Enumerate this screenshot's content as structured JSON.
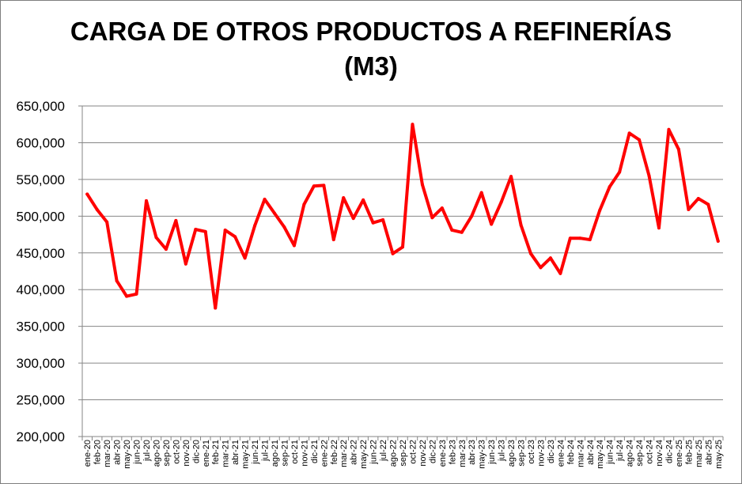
{
  "chart_data": {
    "type": "line",
    "title": "CARGA DE OTROS PRODUCTOS A REFINERÍAS",
    "subtitle": "(M3)",
    "xlabel": "",
    "ylabel": "",
    "ylim": [
      200000,
      650000
    ],
    "yticks": [
      "200,000",
      "250,000",
      "300,000",
      "350,000",
      "400,000",
      "450,000",
      "500,000",
      "550,000",
      "600,000",
      "650,000"
    ],
    "ytick_values": [
      200000,
      250000,
      300000,
      350000,
      400000,
      450000,
      500000,
      550000,
      600000,
      650000
    ],
    "grid": true,
    "legend": "none",
    "line_color": "#ff0000",
    "categories": [
      "ene-20",
      "feb-20",
      "mar-20",
      "abr-20",
      "may-20",
      "jun-20",
      "jul-20",
      "ago-20",
      "sep-20",
      "oct-20",
      "nov-20",
      "dic-20",
      "ene-21",
      "feb-21",
      "mar-21",
      "abr-21",
      "may-21",
      "jun-21",
      "jul-21",
      "ago-21",
      "sep-21",
      "oct-21",
      "nov-21",
      "dic-21",
      "ene-22",
      "feb-22",
      "mar-22",
      "abr-22",
      "may-22",
      "jun-22",
      "jul-22",
      "ago-22",
      "sep-22",
      "oct-22",
      "nov-22",
      "dic-22",
      "ene-23",
      "feb-23",
      "mar-23",
      "abr-23",
      "may-23",
      "jun-23",
      "jul-23",
      "ago-23",
      "sep-23",
      "oct-23",
      "nov-23",
      "dic-23",
      "ene-24",
      "feb-24",
      "mar-24",
      "abr-24",
      "may-24",
      "jun-24",
      "jul-24",
      "ago-24",
      "sep-24",
      "oct-24",
      "nov-24",
      "dic-24",
      "ene-25",
      "feb-25",
      "mar-25",
      "abr-25",
      "may-25"
    ],
    "series": [
      {
        "values": [
          530000,
          509000,
          492000,
          412000,
          391000,
          394000,
          521000,
          471000,
          455000,
          494000,
          435000,
          482000,
          479000,
          375000,
          481000,
          472000,
          443000,
          487000,
          523000,
          504000,
          485000,
          460000,
          516000,
          541000,
          542000,
          468000,
          525000,
          497000,
          522000,
          491000,
          495000,
          449000,
          458000,
          625000,
          543000,
          498000,
          511000,
          481000,
          478000,
          500000,
          532000,
          489000,
          519000,
          554000,
          488000,
          449000,
          430000,
          443000,
          422000,
          470000,
          470000,
          468000,
          508000,
          540000,
          560000,
          613000,
          604000,
          555000,
          484000,
          618000,
          591000,
          509000,
          524000,
          516000,
          466000
        ]
      }
    ]
  }
}
